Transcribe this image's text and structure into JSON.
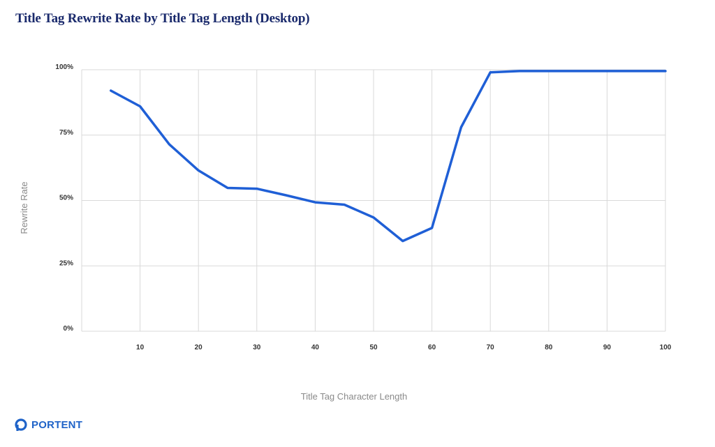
{
  "colors": {
    "title": "#1a2a6c",
    "line": "#1f5fd6",
    "brand": "#1f63c8",
    "grid": "#d9d9d9",
    "axis_label": "#8a8a8a"
  },
  "brand": {
    "name": "PORTENT",
    "icon": "portent-logo-icon"
  },
  "chart_data": {
    "type": "line",
    "title": "Title Tag Rewrite Rate by Title Tag Length (Desktop)",
    "xlabel": "Title Tag Character Length",
    "ylabel": "Rewrite Rate",
    "xlim": [
      0,
      100
    ],
    "ylim": [
      0,
      100
    ],
    "x_ticks": [
      10,
      20,
      30,
      40,
      50,
      60,
      70,
      80,
      90,
      100
    ],
    "y_ticks": [
      0,
      25,
      50,
      75,
      100
    ],
    "y_tick_labels": [
      "0%",
      "25%",
      "50%",
      "75%",
      "100%"
    ],
    "grid": true,
    "series": [
      {
        "x": [
          5,
          10,
          15,
          20,
          25,
          30,
          35,
          40,
          45,
          50,
          55,
          60,
          65,
          70,
          75,
          80,
          85,
          90,
          95,
          100
        ],
        "values": [
          92,
          86,
          71.5,
          61.5,
          54.8,
          54.5,
          52,
          49.3,
          48.4,
          43.5,
          34.5,
          39.5,
          78,
          99,
          99.5,
          99.5,
          99.5,
          99.5,
          99.5,
          99.5
        ]
      }
    ]
  }
}
